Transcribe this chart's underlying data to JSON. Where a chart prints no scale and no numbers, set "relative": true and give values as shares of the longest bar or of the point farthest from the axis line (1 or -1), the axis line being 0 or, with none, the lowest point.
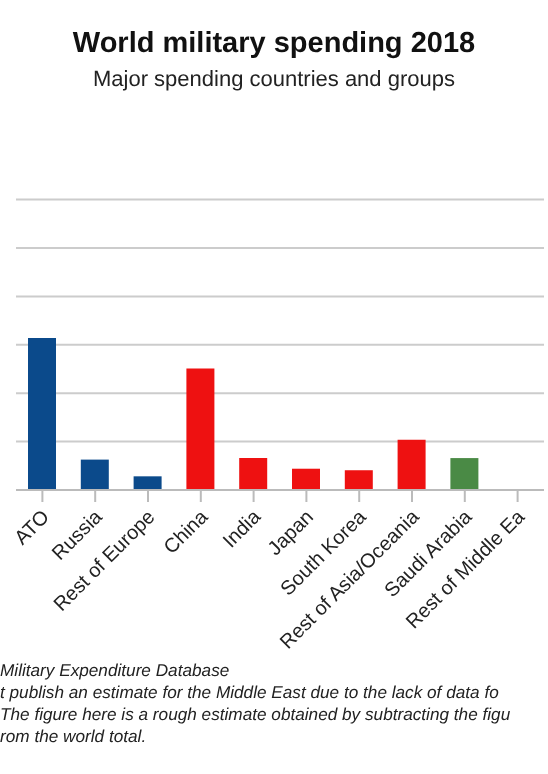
{
  "chart_data": {
    "type": "bar",
    "title": "World military spending 2018",
    "subtitle": "Major spending countries and groups",
    "categories": [
      "ATO",
      "Russia",
      "Rest of Europe",
      "China",
      "India",
      "Japan",
      "South Korea",
      "Rest of Asia/Oceania",
      "Saudi Arabia",
      "Rest of Middle Ea"
    ],
    "values": [
      1,
      0.2,
      0.09,
      0.8,
      0.21,
      0.14,
      0.13,
      0.33,
      0.21,
      null
    ],
    "colors": [
      "#0b4a8b",
      "#0b4a8b",
      "#0b4a8b",
      "#ee1111",
      "#ee1111",
      "#ee1111",
      "#ee1111",
      "#ee1111",
      "#4a8a45",
      "#4a8a45"
    ],
    "relative": true,
    "grid": "y",
    "annotations": [
      "Military Expenditure Database",
      "t publish an estimate for the Middle East due to the lack of data fo",
      "The figure here is a rough estimate obtained by subtracting the figu",
      "rom the world total."
    ]
  }
}
